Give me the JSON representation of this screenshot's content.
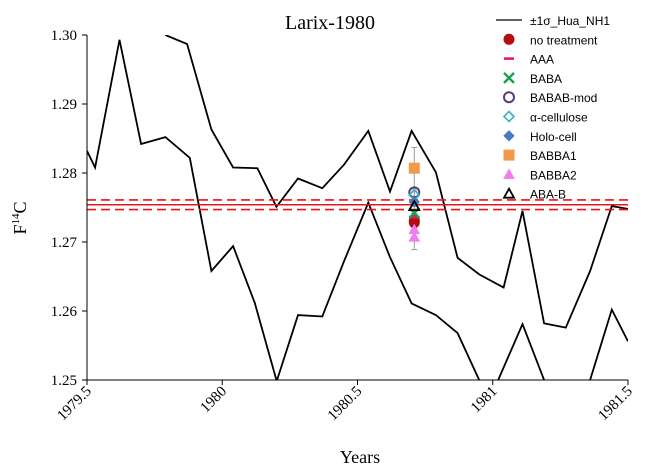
{
  "chart_data": {
    "type": "scatter",
    "title": "Larix-1980",
    "xlabel": "Years",
    "ylabel_main": "F",
    "ylabel_sup": "14",
    "ylabel_tail": "C",
    "xlim": [
      1979.5,
      1981.5
    ],
    "ylim": [
      1.25,
      1.3
    ],
    "x_ticks": [
      1979.5,
      1980,
      1980.5,
      1981,
      1981.5
    ],
    "x_tick_labels": [
      "1979.5",
      "1980",
      "1980.5",
      "1981",
      "1981.5"
    ],
    "y_ticks": [
      1.25,
      1.26,
      1.27,
      1.28,
      1.29,
      1.3
    ],
    "y_tick_labels": [
      "1.25",
      "1.26",
      "1.27",
      "1.28",
      "1.29",
      "1.30"
    ],
    "grid": false,
    "legend_position": "right",
    "hua_band": {
      "name": "±1σ_Hua_NH1",
      "color": "#000000",
      "upper": [
        [
          1979.5,
          1.2832
        ],
        [
          1979.53,
          1.2808
        ],
        [
          1979.62,
          1.2993
        ],
        [
          1979.7,
          1.2842
        ],
        [
          1979.79,
          1.2852
        ],
        [
          1979.88,
          1.2822
        ],
        [
          1979.96,
          1.2658
        ],
        [
          1980.04,
          1.2694
        ],
        [
          1980.12,
          1.2612
        ],
        [
          1980.2,
          1.25
        ]
      ],
      "upper2": [
        [
          1980.2,
          1.2497
        ],
        [
          1980.28,
          1.2594
        ],
        [
          1980.37,
          1.2592
        ],
        [
          1980.45,
          1.2672
        ],
        [
          1980.54,
          1.2757
        ],
        [
          1980.62,
          1.2678
        ],
        [
          1980.7,
          1.2611
        ],
        [
          1980.79,
          1.2594
        ],
        [
          1980.87,
          1.2568
        ],
        [
          1980.95,
          1.25
        ]
      ],
      "upper3": [
        [
          1981.02,
          1.25
        ],
        [
          1981.11,
          1.2581
        ],
        [
          1981.19,
          1.25
        ]
      ],
      "upper4": [
        [
          1981.36,
          1.25
        ],
        [
          1981.44,
          1.2602
        ],
        [
          1981.5,
          1.2556
        ]
      ],
      "lower": [
        [
          1979.79,
          1.3
        ],
        [
          1979.87,
          1.2987
        ],
        [
          1979.96,
          1.2863
        ],
        [
          1980.04,
          1.2808
        ],
        [
          1980.13,
          1.2807
        ],
        [
          1980.2,
          1.2751
        ],
        [
          1980.28,
          1.2792
        ],
        [
          1980.37,
          1.2778
        ],
        [
          1980.45,
          1.2812
        ],
        [
          1980.54,
          1.2861
        ],
        [
          1980.62,
          1.2773
        ],
        [
          1980.7,
          1.2861
        ],
        [
          1980.79,
          1.2801
        ],
        [
          1980.87,
          1.2677
        ],
        [
          1980.95,
          1.2653
        ],
        [
          1981.04,
          1.2634
        ],
        [
          1981.11,
          1.2745
        ],
        [
          1981.19,
          1.2582
        ],
        [
          1981.27,
          1.2576
        ],
        [
          1981.36,
          1.2658
        ],
        [
          1981.44,
          1.2752
        ],
        [
          1981.5,
          1.2748
        ]
      ]
    },
    "reference_lines": {
      "solid": 1.2754,
      "dashed": [
        1.2747,
        1.2761
      ],
      "color": "#e8141b"
    },
    "series": [
      {
        "name": "no treatment",
        "x": [
          1980.71,
          1980.71
        ],
        "y": [
          1.2728,
          1.2731
        ],
        "yerr": [
          0.0004,
          0.0004
        ],
        "marker": "circle",
        "color": "#b50d0d"
      },
      {
        "name": "AAA",
        "x": [
          1980.71
        ],
        "y": [
          1.2736
        ],
        "yerr": [
          0.0005
        ],
        "marker": "dash",
        "color": "#e8147a"
      },
      {
        "name": "BABA",
        "x": [
          1980.71
        ],
        "y": [
          1.2742
        ],
        "yerr": [
          0.0005
        ],
        "marker": "x",
        "color": "#19a04b"
      },
      {
        "name": "BABAB-mod",
        "x": [
          1980.71
        ],
        "y": [
          1.2772
        ],
        "yerr": [
          0.0006
        ],
        "marker": "open-circle",
        "color": "#5b3a78"
      },
      {
        "name": "α-cellulose",
        "x": [
          1980.71
        ],
        "y": [
          1.2768
        ],
        "yerr": [
          0.0006
        ],
        "marker": "open-diamond",
        "color": "#35b4c4"
      },
      {
        "name": "Holo-cell",
        "x": [
          1980.71
        ],
        "y": [
          1.2758
        ],
        "yerr": [
          0.0006
        ],
        "marker": "diamond",
        "color": "#4a7cc1"
      },
      {
        "name": "BABBA1",
        "x": [
          1980.71
        ],
        "y": [
          1.2807
        ],
        "yerr": [
          0.003
        ],
        "marker": "square",
        "color": "#f39a4a"
      },
      {
        "name": "BABBA2",
        "x": [
          1980.71,
          1980.71
        ],
        "y": [
          1.2707,
          1.2718
        ],
        "yerr": [
          0.0018,
          0.001
        ],
        "marker": "triangle",
        "color": "#f07ef0"
      },
      {
        "name": "ABA-B",
        "x": [
          1980.71
        ],
        "y": [
          1.2752
        ],
        "yerr": [
          0.0006
        ],
        "marker": "open-triangle",
        "color": "#000000"
      }
    ]
  }
}
